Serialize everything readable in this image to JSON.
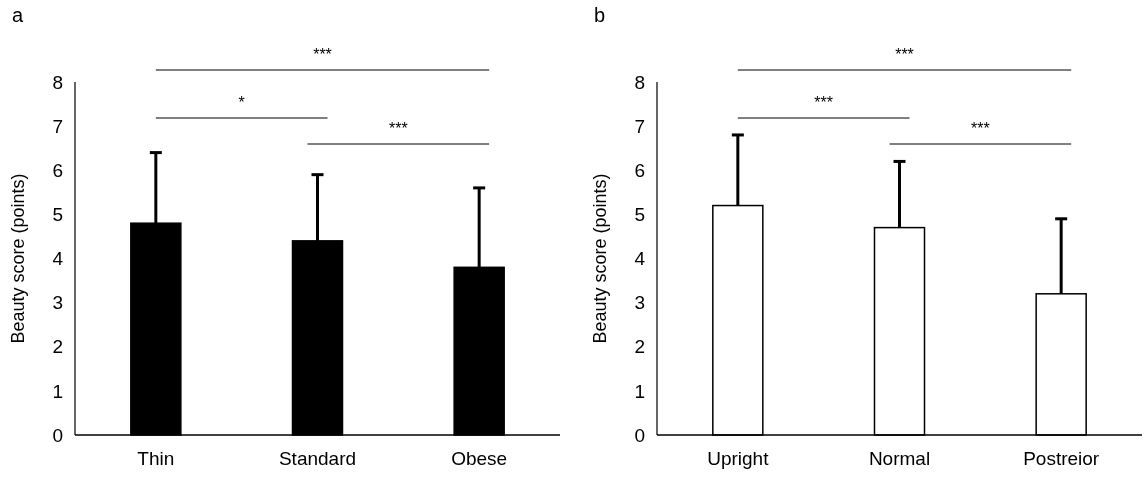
{
  "chart_data": [
    {
      "type": "bar",
      "title": "a",
      "ylabel": "Beauty score (points)",
      "categories": [
        "Thin",
        "Standard",
        "Obese"
      ],
      "values": [
        4.8,
        4.4,
        3.8
      ],
      "errors": [
        [
          4.8,
          6.4
        ],
        [
          4.4,
          5.9
        ],
        [
          3.8,
          5.6
        ]
      ],
      "color": "#000000",
      "ylim": [
        0,
        8
      ],
      "yticks": [
        0,
        1,
        2,
        3,
        4,
        5,
        6,
        7,
        8
      ],
      "annotations": [
        "***",
        "*",
        "***"
      ]
    },
    {
      "type": "bar",
      "title": "b",
      "ylabel": "Beauty score (points)",
      "categories": [
        "Upright",
        "Normal",
        "Postreior"
      ],
      "values": [
        5.2,
        4.7,
        3.2
      ],
      "errors": [
        [
          5.2,
          6.8
        ],
        [
          4.7,
          6.2
        ],
        [
          3.2,
          4.9
        ]
      ],
      "color": "#ffffff",
      "ylim": [
        0,
        8
      ],
      "yticks": [
        0,
        1,
        2,
        3,
        4,
        5,
        6,
        7,
        8
      ],
      "annotations": [
        "***",
        "***",
        "***"
      ]
    }
  ]
}
